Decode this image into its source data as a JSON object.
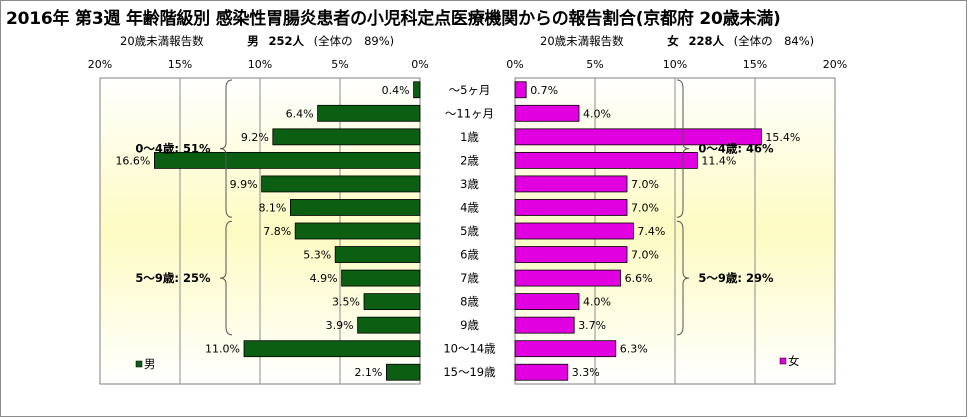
{
  "title": "2016年 第3週 年齢階級別 感染性胃腸炎患者の小児科定点医療機関からの報告割合(京都府 20歳未満)",
  "header_left": {
    "label": "20歳未満報告数",
    "sex": "男",
    "count": "252人",
    "share": "(全体の　89%)"
  },
  "header_right": {
    "label": "20歳未満報告数",
    "sex": "女",
    "count": "228人",
    "share": "(全体の　84%)"
  },
  "chart_data": [
    {
      "type": "bar",
      "orientation": "horizontal",
      "direction": "right-to-left",
      "categories": [
        "〜5ヶ月",
        "〜11ヶ月",
        "1歳",
        "2歳",
        "3歳",
        "4歳",
        "5歳",
        "6歳",
        "7歳",
        "8歳",
        "9歳",
        "10〜14歳",
        "15〜19歳"
      ],
      "series": [
        {
          "name": "男",
          "values": [
            0.4,
            6.4,
            9.2,
            16.6,
            9.9,
            8.1,
            7.8,
            5.3,
            4.9,
            3.5,
            3.9,
            11.0,
            2.1
          ],
          "color": "#0b5e12"
        }
      ],
      "value_labels": [
        "0.4%",
        "6.4%",
        "9.2%",
        "16.6%",
        "9.9%",
        "8.1%",
        "7.8%",
        "5.3%",
        "4.9%",
        "3.5%",
        "3.9%",
        "11.0%",
        "2.1%"
      ],
      "xlim": [
        0,
        20
      ],
      "xticks": [
        "20%",
        "15%",
        "10%",
        "5%",
        "0%"
      ],
      "legend": "bottom-left",
      "annotations": [
        {
          "text": "0〜4歳: 51%",
          "from": "〜5ヶ月",
          "to": "4歳"
        },
        {
          "text": "5〜9歳: 25%",
          "from": "5歳",
          "to": "9歳"
        }
      ]
    },
    {
      "type": "bar",
      "orientation": "horizontal",
      "direction": "left-to-right",
      "categories": [
        "〜5ヶ月",
        "〜11ヶ月",
        "1歳",
        "2歳",
        "3歳",
        "4歳",
        "5歳",
        "6歳",
        "7歳",
        "8歳",
        "9歳",
        "10〜14歳",
        "15〜19歳"
      ],
      "series": [
        {
          "name": "女",
          "values": [
            0.7,
            4.0,
            15.4,
            11.4,
            7.0,
            7.0,
            7.4,
            7.0,
            6.6,
            4.0,
            3.7,
            6.3,
            3.3
          ],
          "color": "#e000e0"
        }
      ],
      "value_labels": [
        "0.7%",
        "4.0%",
        "15.4%",
        "11.4%",
        "7.0%",
        "7.0%",
        "7.4%",
        "7.0%",
        "6.6%",
        "4.0%",
        "3.7%",
        "6.3%",
        "3.3%"
      ],
      "xlim": [
        0,
        20
      ],
      "xticks": [
        "0%",
        "5%",
        "10%",
        "15%",
        "20%"
      ],
      "legend": "bottom-right",
      "annotations": [
        {
          "text": "0〜4歳: 46%",
          "from": "〜5ヶ月",
          "to": "4歳"
        },
        {
          "text": "5〜9歳: 29%",
          "from": "5歳",
          "to": "9歳"
        }
      ]
    }
  ]
}
